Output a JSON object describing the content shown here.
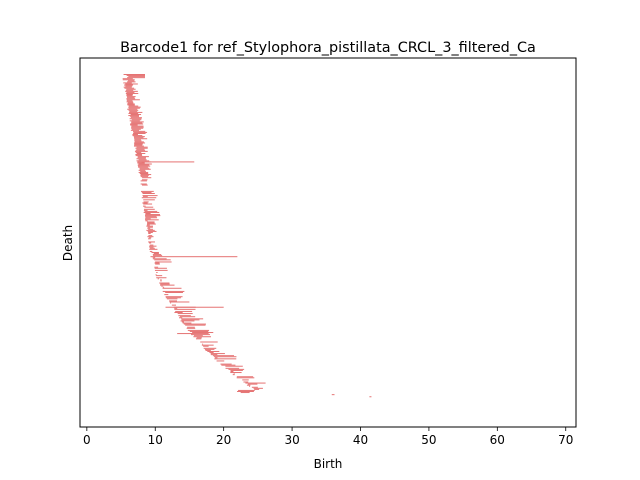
{
  "chart_data": {
    "type": "barcode",
    "title": "Barcode1 for ref_Stylophora_pistillata_CRCL_3_filtered_Ca",
    "xlabel": "Birth",
    "ylabel": "Death",
    "xlim": [
      -1,
      71.5
    ],
    "xticks": [
      0,
      10,
      20,
      30,
      40,
      50,
      60,
      70
    ],
    "y_ticks_shown": false,
    "bar_color": "#e57373",
    "n_rows": 320,
    "x_note": "Each horizontal bar is an interval [birth, end] drawn in its own row; rows ordered top to bottom.",
    "features": [
      {
        "label": "top dense block",
        "rows": [
          0,
          96
        ],
        "birth_start": 5.0,
        "birth_end": 7.6,
        "typical_end": 8.0
      },
      {
        "label": "long bar",
        "row": 83,
        "birth": 8.0,
        "end": 15.7
      },
      {
        "label": "long bar",
        "row": 173,
        "birth": 9.3,
        "end": 22.0
      },
      {
        "label": "long bar",
        "row": 221,
        "birth": 11.5,
        "end": 20.0
      },
      {
        "label": "long bar",
        "row": 246,
        "birth": 13.2,
        "end": 17.8
      },
      {
        "label": "outlier",
        "row": 304,
        "birth": 35.8,
        "end": 36.2
      },
      {
        "label": "outlier",
        "row": 306,
        "birth": 41.3,
        "end": 41.6
      }
    ]
  }
}
